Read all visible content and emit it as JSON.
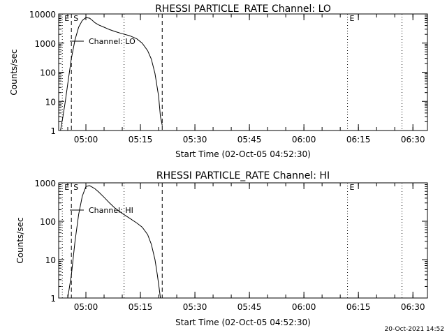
{
  "chart_data": [
    {
      "type": "line",
      "title": "RHESSI PARTICLE_RATE Channel: LO",
      "xlabel": "Start Time (02-Oct-05 04:52:30)",
      "ylabel": "Counts/sec",
      "yscale": "log",
      "ylim": [
        1,
        10000
      ],
      "xlim": [
        "04:52:30",
        "06:34:00"
      ],
      "xticks": [
        "05:00",
        "05:15",
        "05:30",
        "05:45",
        "06:00",
        "06:15",
        "06:30"
      ],
      "yticks": [
        "1",
        "10",
        "100",
        "1000",
        "10000"
      ],
      "legend": "Channel: LO",
      "markers": [
        {
          "label": "E",
          "time": "04:53:30",
          "style": "dotted"
        },
        {
          "label": "S",
          "time": "04:56:00",
          "style": "dashed"
        },
        {
          "label": "",
          "time": "05:10:30",
          "style": "dotted"
        },
        {
          "label": "",
          "time": "05:21:00",
          "style": "dashed"
        },
        {
          "label": "E",
          "time": "06:12:00",
          "style": "dotted"
        },
        {
          "label": "",
          "time": "06:27:00",
          "style": "dotted"
        }
      ],
      "series": [
        {
          "x": [
            "04:53:00",
            "04:53:40",
            "04:54:20",
            "04:55:00",
            "04:56:00",
            "04:57:00",
            "04:58:00",
            "04:59:00",
            "05:00:00",
            "05:01:00",
            "05:01:40",
            "05:02:30",
            "05:03:30",
            "05:05:00",
            "05:06:30",
            "05:08:00",
            "05:10:00",
            "05:12:00",
            "05:14:00",
            "05:15:30",
            "05:17:00",
            "05:18:00",
            "05:19:00",
            "05:20:00",
            "05:20:30",
            "05:21:00"
          ],
          "y": [
            1,
            3,
            10,
            40,
            300,
            1300,
            3500,
            6000,
            7500,
            7200,
            6200,
            5000,
            4200,
            3500,
            2900,
            2500,
            2100,
            1800,
            1400,
            1000,
            550,
            280,
            90,
            15,
            3,
            1.5
          ]
        }
      ]
    },
    {
      "type": "line",
      "title": "RHESSI PARTICLE_RATE Channel: HI",
      "xlabel": "Start Time (02-Oct-05 04:52:30)",
      "ylabel": "Counts/sec",
      "yscale": "log",
      "ylim": [
        1,
        1000
      ],
      "xlim": [
        "04:52:30",
        "06:34:00"
      ],
      "xticks": [
        "05:00",
        "05:15",
        "05:30",
        "05:45",
        "06:00",
        "06:15",
        "06:30"
      ],
      "yticks": [
        "1",
        "10",
        "100",
        "1000"
      ],
      "legend": "Channel: HI",
      "markers": [
        {
          "label": "E",
          "time": "04:53:30",
          "style": "dotted"
        },
        {
          "label": "S",
          "time": "04:56:00",
          "style": "dashed"
        },
        {
          "label": "",
          "time": "05:10:30",
          "style": "dotted"
        },
        {
          "label": "",
          "time": "05:21:00",
          "style": "dashed"
        },
        {
          "label": "E",
          "time": "06:12:00",
          "style": "dotted"
        },
        {
          "label": "",
          "time": "06:27:00",
          "style": "dotted"
        }
      ],
      "series": [
        {
          "x": [
            "04:55:00",
            "04:55:30",
            "04:56:00",
            "04:57:00",
            "04:58:00",
            "04:59:00",
            "05:00:00",
            "05:01:00",
            "05:01:40",
            "05:02:30",
            "05:03:30",
            "05:05:00",
            "05:06:30",
            "05:08:00",
            "05:10:00",
            "05:12:00",
            "05:14:00",
            "05:15:30",
            "05:17:00",
            "05:18:00",
            "05:19:00",
            "05:19:40",
            "05:20:10",
            "05:20:30"
          ],
          "y": [
            1,
            2,
            4,
            30,
            150,
            450,
            800,
            850,
            780,
            700,
            580,
            420,
            300,
            220,
            160,
            120,
            90,
            70,
            45,
            25,
            10,
            4,
            1.8,
            1
          ]
        }
      ]
    }
  ],
  "timestamp": "20-Oct-2021 14:52"
}
